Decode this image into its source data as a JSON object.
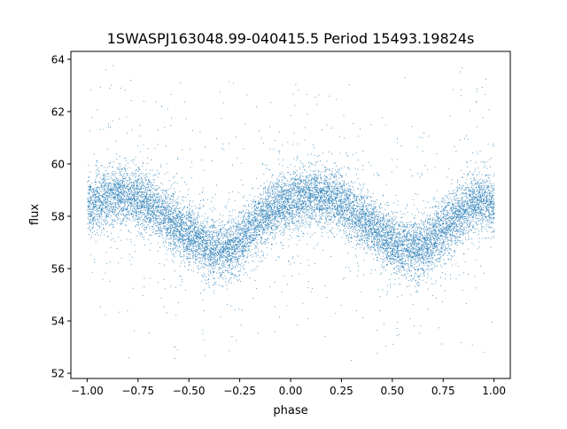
{
  "chart_data": {
    "type": "scatter",
    "title": "1SWASPJ163048.99-040415.5 Period 15493.19824s",
    "xlabel": "phase",
    "ylabel": "flux",
    "xlim": [
      -1.08,
      1.08
    ],
    "ylim": [
      51.8,
      64.3
    ],
    "xticks": [
      -1.0,
      -0.75,
      -0.5,
      -0.25,
      0.0,
      0.25,
      0.5,
      0.75,
      1.0
    ],
    "xtick_labels": [
      "−1.00",
      "−0.75",
      "−0.50",
      "−0.25",
      "0.00",
      "0.25",
      "0.50",
      "0.75",
      "1.00"
    ],
    "yticks": [
      52,
      54,
      56,
      58,
      60,
      62,
      64
    ],
    "ytick_labels": [
      "52",
      "54",
      "56",
      "58",
      "60",
      "62",
      "64"
    ],
    "grid": false,
    "legend": "none",
    "point_color": "#1f77b4",
    "series": [
      {
        "x": [
          -1.0,
          -0.95,
          -0.9,
          -0.85,
          -0.8,
          -0.75,
          -0.7,
          -0.65,
          -0.6,
          -0.55,
          -0.5,
          -0.45,
          -0.4,
          -0.35,
          -0.3,
          -0.25,
          -0.2,
          -0.15,
          -0.1,
          -0.05,
          0.0,
          0.05,
          0.1,
          0.15,
          0.2,
          0.25,
          0.3,
          0.35,
          0.4,
          0.45,
          0.5,
          0.55,
          0.6,
          0.65,
          0.7,
          0.75,
          0.8,
          0.85,
          0.9,
          0.95,
          1.0
        ],
        "y": [
          58.4,
          58.6,
          58.7,
          58.8,
          58.8,
          58.7,
          58.5,
          58.2,
          57.9,
          57.6,
          57.3,
          57.0,
          56.8,
          56.7,
          56.8,
          57.1,
          57.5,
          57.9,
          58.2,
          58.5,
          58.6,
          58.7,
          58.8,
          58.8,
          58.7,
          58.5,
          58.2,
          57.9,
          57.6,
          57.3,
          57.0,
          56.8,
          56.7,
          56.8,
          57.1,
          57.5,
          57.9,
          58.2,
          58.5,
          58.6,
          58.4
        ]
      }
    ]
  }
}
